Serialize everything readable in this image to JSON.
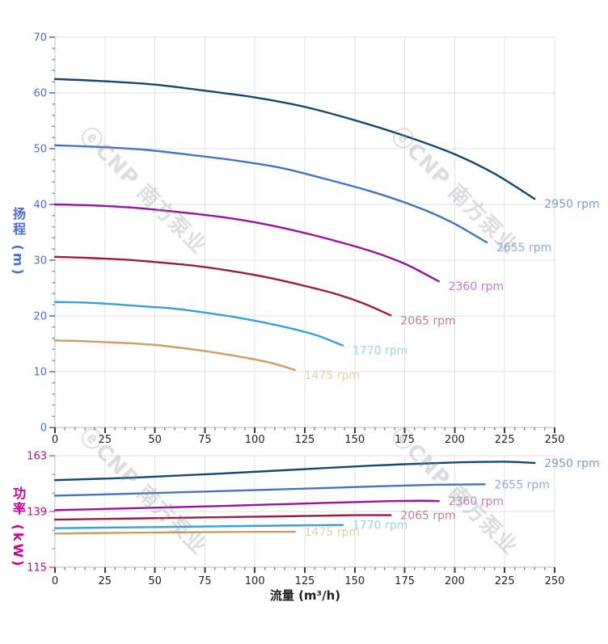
{
  "watermark": {
    "text": "ⓔCNP 南方泵业"
  },
  "colors": {
    "head_axis_text": "#4a6bd8",
    "head_axis_tick": "#7b8cd8",
    "power_axis_text": "#cc0099",
    "power_axis_tick": "#df7ec2",
    "x_axis_text": "#222222",
    "x_tick_major": "#3c3c3c",
    "x_tick_minor": "#8a8a8a",
    "grid": "#e2e2e6",
    "axis_line": "#c6c6cc",
    "x_axis_line": "#b9b9bf"
  },
  "chart_data": [
    {
      "type": "line",
      "xlabel": "",
      "ylabel": "扬程 (m)",
      "xlim": [
        0,
        250
      ],
      "ylim": [
        0,
        70
      ],
      "xticks": [
        0,
        25,
        50,
        75,
        100,
        125,
        150,
        175,
        200,
        225,
        250
      ],
      "yticks": [
        0,
        10,
        20,
        30,
        40,
        50,
        60,
        70
      ],
      "x_minor_step": 5,
      "y_minor_step": 2,
      "grid": true,
      "legend_position": "curve-end-labels",
      "series": [
        {
          "name": "2950 rpm",
          "color": "#16486f",
          "label_color": "#7d9cbc",
          "points": [
            [
              0,
              62.5
            ],
            [
              25,
              62.1
            ],
            [
              50,
              61.5
            ],
            [
              75,
              60.4
            ],
            [
              100,
              59.2
            ],
            [
              125,
              57.5
            ],
            [
              150,
              55.1
            ],
            [
              175,
              52.3
            ],
            [
              200,
              49.0
            ],
            [
              220,
              45.5
            ],
            [
              240,
              41.0
            ]
          ]
        },
        {
          "name": "2655 rpm",
          "color": "#4573c4",
          "label_color": "#91abdd",
          "points": [
            [
              0,
              50.6
            ],
            [
              22.5,
              50.3
            ],
            [
              45,
              49.8
            ],
            [
              67.5,
              48.9
            ],
            [
              90,
              47.9
            ],
            [
              112.5,
              46.6
            ],
            [
              135,
              44.6
            ],
            [
              157.5,
              42.4
            ],
            [
              180,
              39.7
            ],
            [
              198,
              36.9
            ],
            [
              216,
              33.2
            ]
          ]
        },
        {
          "name": "2360 rpm",
          "color": "#99119d",
          "label_color": "#c07ec2",
          "points": [
            [
              0,
              40.0
            ],
            [
              20,
              39.8
            ],
            [
              40,
              39.4
            ],
            [
              60,
              38.7
            ],
            [
              80,
              37.9
            ],
            [
              100,
              36.8
            ],
            [
              120,
              35.3
            ],
            [
              140,
              33.5
            ],
            [
              160,
              31.4
            ],
            [
              176,
              29.2
            ],
            [
              192,
              26.2
            ]
          ]
        },
        {
          "name": "2065 rpm",
          "color": "#9f1b3d",
          "label_color": "#bf7e91",
          "points": [
            [
              0,
              30.6
            ],
            [
              17.5,
              30.4
            ],
            [
              35,
              30.1
            ],
            [
              52.5,
              29.6
            ],
            [
              70,
              29.0
            ],
            [
              87.5,
              28.1
            ],
            [
              105,
              27.0
            ],
            [
              122.5,
              25.6
            ],
            [
              140,
              24.0
            ],
            [
              154,
              22.3
            ],
            [
              168,
              20.1
            ]
          ]
        },
        {
          "name": "1770 rpm",
          "color": "#35a0da",
          "label_color": "#9fd2ef",
          "points": [
            [
              0,
              22.5
            ],
            [
              15,
              22.4
            ],
            [
              30,
              22.1
            ],
            [
              45,
              21.7
            ],
            [
              60,
              21.3
            ],
            [
              75,
              20.6
            ],
            [
              90,
              19.8
            ],
            [
              105,
              18.8
            ],
            [
              120,
              17.6
            ],
            [
              132,
              16.4
            ],
            [
              144,
              14.7
            ]
          ]
        },
        {
          "name": "1475 rpm",
          "color": "#d09c60",
          "label_color": "#e9cfa7",
          "points": [
            [
              0,
              15.6
            ],
            [
              12.5,
              15.5
            ],
            [
              25,
              15.3
            ],
            [
              37.5,
              15.1
            ],
            [
              50,
              14.8
            ],
            [
              62.5,
              14.3
            ],
            [
              75,
              13.7
            ],
            [
              87.5,
              13.0
            ],
            [
              100,
              12.2
            ],
            [
              110,
              11.4
            ],
            [
              120,
              10.3
            ]
          ]
        }
      ]
    },
    {
      "type": "line",
      "xlabel": "流量 (m³/h)",
      "ylabel": "功率 (kW)",
      "xlim": [
        0,
        250
      ],
      "ylim": [
        115,
        163
      ],
      "xticks": [
        0,
        25,
        50,
        75,
        100,
        125,
        150,
        175,
        200,
        225,
        250
      ],
      "yticks": [
        115,
        139,
        163
      ],
      "x_minor_step": 5,
      "y_minor_step": 8,
      "grid": true,
      "legend_position": "curve-end-labels",
      "series": [
        {
          "name": "2950 rpm",
          "color": "#16486f",
          "label_color": "#7d9cbc",
          "points": [
            [
              0,
              152.5
            ],
            [
              40,
              153.6
            ],
            [
              80,
              155.2
            ],
            [
              120,
              157.0
            ],
            [
              160,
              158.8
            ],
            [
              200,
              160.1
            ],
            [
              225,
              160.4
            ],
            [
              240,
              159.9
            ]
          ]
        },
        {
          "name": "2655 rpm",
          "color": "#4573c4",
          "label_color": "#91abdd",
          "points": [
            [
              0,
              145.8
            ],
            [
              40,
              146.7
            ],
            [
              80,
              147.7
            ],
            [
              120,
              148.7
            ],
            [
              160,
              149.8
            ],
            [
              190,
              150.5
            ],
            [
              215,
              150.7
            ]
          ]
        },
        {
          "name": "2360 rpm",
          "color": "#99119d",
          "label_color": "#c07ec2",
          "points": [
            [
              0,
              139.6
            ],
            [
              40,
              140.4
            ],
            [
              80,
              141.3
            ],
            [
              120,
              142.3
            ],
            [
              160,
              143.3
            ],
            [
              180,
              143.6
            ],
            [
              192,
              143.5
            ]
          ]
        },
        {
          "name": "2065 rpm",
          "color": "#9f1b3d",
          "label_color": "#bf7e91",
          "points": [
            [
              0,
              135.5
            ],
            [
              40,
              136.0
            ],
            [
              80,
              136.5
            ],
            [
              120,
              137.0
            ],
            [
              150,
              137.4
            ],
            [
              168,
              137.4
            ]
          ]
        },
        {
          "name": "1770 rpm",
          "color": "#35a0da",
          "label_color": "#9fd2ef",
          "points": [
            [
              0,
              131.8
            ],
            [
              40,
              132.2
            ],
            [
              80,
              132.6
            ],
            [
              120,
              133.0
            ],
            [
              144,
              133.2
            ]
          ]
        },
        {
          "name": "1475 rpm",
          "color": "#d09c60",
          "label_color": "#e9cfa7",
          "points": [
            [
              0,
              129.5
            ],
            [
              30,
              129.8
            ],
            [
              60,
              130.0
            ],
            [
              90,
              130.2
            ],
            [
              120,
              130.3
            ]
          ]
        }
      ]
    }
  ]
}
